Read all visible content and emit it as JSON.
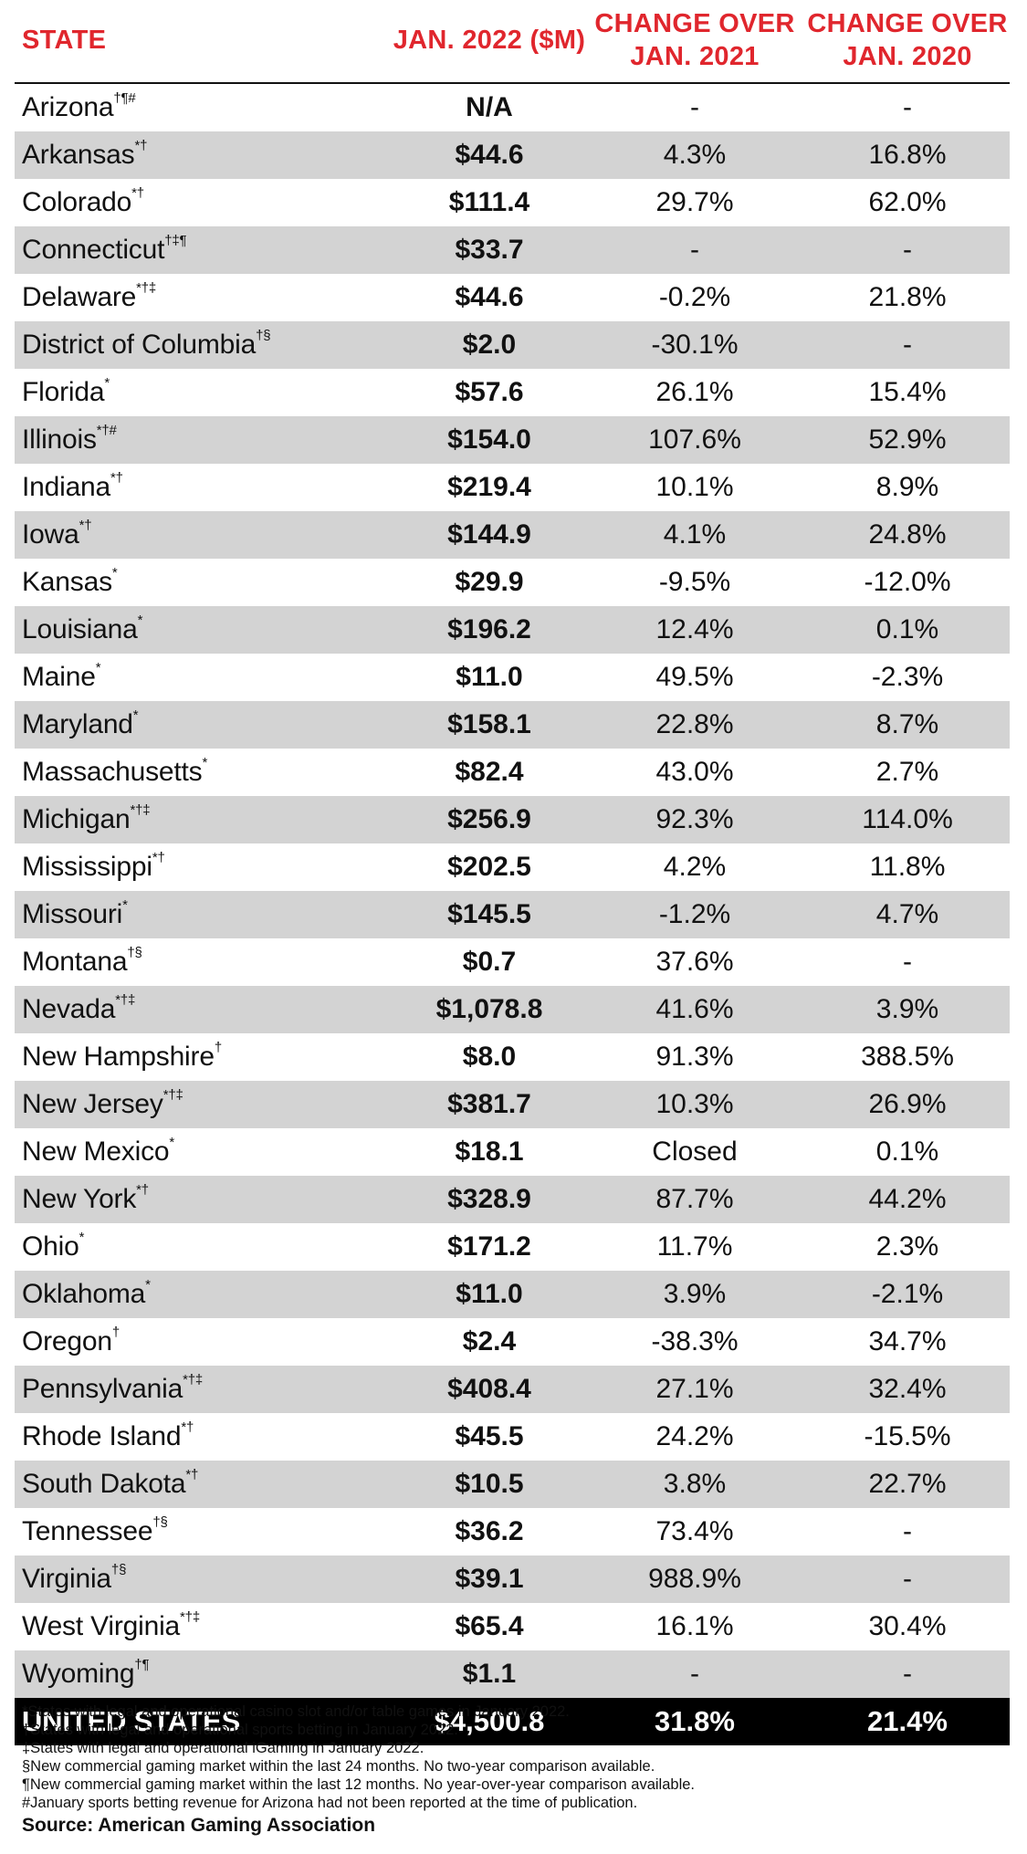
{
  "header": {
    "state": "STATE",
    "jan2022": "JAN. 2022 ($M)",
    "chg2021_line1": "CHANGE OVER",
    "chg2021_line2": "JAN. 2021",
    "chg2020_line1": "CHANGE OVER",
    "chg2020_line2": "JAN. 2020"
  },
  "rows": [
    {
      "state": "Arizona",
      "marks": "†¶#",
      "value": "N/A",
      "chg2021": "-",
      "chg2020": "-"
    },
    {
      "state": "Arkansas",
      "marks": "*†",
      "value": "$44.6",
      "chg2021": "4.3%",
      "chg2020": "16.8%"
    },
    {
      "state": "Colorado",
      "marks": "*†",
      "value": "$111.4",
      "chg2021": "29.7%",
      "chg2020": "62.0%"
    },
    {
      "state": "Connecticut",
      "marks": "†‡¶",
      "value": "$33.7",
      "chg2021": "-",
      "chg2020": "-"
    },
    {
      "state": "Delaware",
      "marks": "*†‡",
      "value": "$44.6",
      "chg2021": "-0.2%",
      "chg2020": "21.8%"
    },
    {
      "state": "District of Columbia",
      "marks": "†§",
      "value": "$2.0",
      "chg2021": "-30.1%",
      "chg2020": "-"
    },
    {
      "state": "Florida",
      "marks": "*",
      "value": "$57.6",
      "chg2021": "26.1%",
      "chg2020": "15.4%"
    },
    {
      "state": "Illinois",
      "marks": "*†#",
      "value": "$154.0",
      "chg2021": "107.6%",
      "chg2020": "52.9%"
    },
    {
      "state": "Indiana",
      "marks": "*†",
      "value": "$219.4",
      "chg2021": "10.1%",
      "chg2020": "8.9%"
    },
    {
      "state": "Iowa",
      "marks": "*†",
      "value": "$144.9",
      "chg2021": "4.1%",
      "chg2020": "24.8%"
    },
    {
      "state": "Kansas",
      "marks": "*",
      "value": "$29.9",
      "chg2021": "-9.5%",
      "chg2020": "-12.0%"
    },
    {
      "state": "Louisiana",
      "marks": "*",
      "value": "$196.2",
      "chg2021": "12.4%",
      "chg2020": "0.1%"
    },
    {
      "state": "Maine",
      "marks": "*",
      "value": "$11.0",
      "chg2021": "49.5%",
      "chg2020": "-2.3%"
    },
    {
      "state": "Maryland",
      "marks": "*",
      "value": "$158.1",
      "chg2021": "22.8%",
      "chg2020": "8.7%"
    },
    {
      "state": "Massachusetts",
      "marks": "*",
      "value": "$82.4",
      "chg2021": "43.0%",
      "chg2020": "2.7%"
    },
    {
      "state": "Michigan",
      "marks": "*†‡",
      "value": "$256.9",
      "chg2021": "92.3%",
      "chg2020": "114.0%"
    },
    {
      "state": "Mississippi",
      "marks": "*†",
      "value": "$202.5",
      "chg2021": "4.2%",
      "chg2020": "11.8%"
    },
    {
      "state": "Missouri",
      "marks": "*",
      "value": "$145.5",
      "chg2021": "-1.2%",
      "chg2020": "4.7%"
    },
    {
      "state": "Montana",
      "marks": "†§",
      "value": "$0.7",
      "chg2021": "37.6%",
      "chg2020": "-"
    },
    {
      "state": "Nevada",
      "marks": "*†‡",
      "value": "$1,078.8",
      "chg2021": "41.6%",
      "chg2020": "3.9%"
    },
    {
      "state": "New Hampshire",
      "marks": "†",
      "value": "$8.0",
      "chg2021": "91.3%",
      "chg2020": "388.5%"
    },
    {
      "state": "New Jersey",
      "marks": "*†‡",
      "value": "$381.7",
      "chg2021": "10.3%",
      "chg2020": "26.9%"
    },
    {
      "state": "New Mexico",
      "marks": "*",
      "value": "$18.1",
      "chg2021": "Closed",
      "chg2020": "0.1%"
    },
    {
      "state": "New York",
      "marks": "*†",
      "value": "$328.9",
      "chg2021": "87.7%",
      "chg2020": "44.2%"
    },
    {
      "state": "Ohio",
      "marks": "*",
      "value": "$171.2",
      "chg2021": "11.7%",
      "chg2020": "2.3%"
    },
    {
      "state": "Oklahoma",
      "marks": "*",
      "value": "$11.0",
      "chg2021": "3.9%",
      "chg2020": "-2.1%"
    },
    {
      "state": "Oregon",
      "marks": "†",
      "value": "$2.4",
      "chg2021": "-38.3%",
      "chg2020": "34.7%"
    },
    {
      "state": "Pennsylvania",
      "marks": "*†‡",
      "value": "$408.4",
      "chg2021": "27.1%",
      "chg2020": "32.4%"
    },
    {
      "state": "Rhode Island",
      "marks": "*†",
      "value": "$45.5",
      "chg2021": "24.2%",
      "chg2020": "-15.5%"
    },
    {
      "state": "South Dakota",
      "marks": "*†",
      "value": "$10.5",
      "chg2021": "3.8%",
      "chg2020": "22.7%"
    },
    {
      "state": "Tennessee",
      "marks": "†§",
      "value": "$36.2",
      "chg2021": "73.4%",
      "chg2020": "-"
    },
    {
      "state": "Virginia",
      "marks": "†§",
      "value": "$39.1",
      "chg2021": "988.9%",
      "chg2020": "-"
    },
    {
      "state": "West Virginia",
      "marks": "*†‡",
      "value": "$65.4",
      "chg2021": "16.1%",
      "chg2020": "30.4%"
    },
    {
      "state": "Wyoming",
      "marks": "†¶",
      "value": "$1.1",
      "chg2021": "-",
      "chg2020": "-"
    }
  ],
  "total": {
    "state": "UNITED STATES",
    "value": "$4,500.8",
    "chg2021": "31.8%",
    "chg2020": "21.4%"
  },
  "notes": [
    "*States with legal and operational casino slot and/or table games in January 2022.",
    "†States with legal and operational sports betting in January 2022.",
    "‡States with legal and operational iGaming in January 2022.",
    "§New commercial gaming market within the last 24 months. No two-year comparison available.",
    "¶New commercial gaming market within the last 12 months. No year-over-year comparison available.",
    "#January sports betting revenue for Arizona had not been reported at the time of publication."
  ],
  "source": "Source: American Gaming Association",
  "colors": {
    "header_red": "#e0262d",
    "alt_row": "#d3d3d3",
    "total_bg": "#000000"
  }
}
